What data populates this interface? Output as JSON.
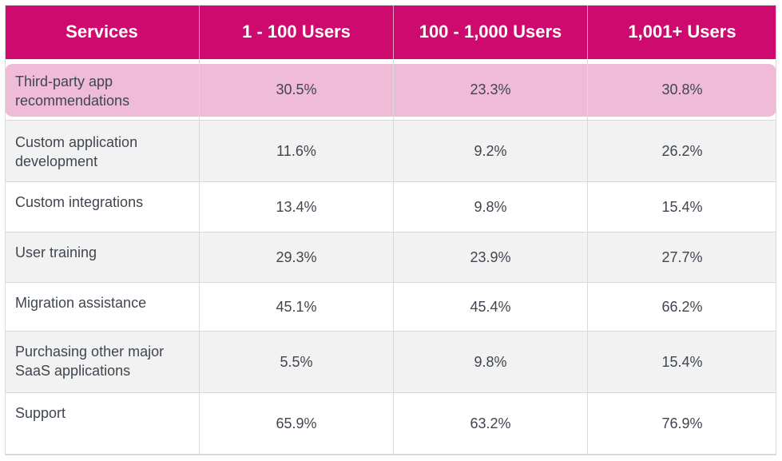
{
  "table": {
    "headers": [
      "Services",
      "1 - 100 Users",
      "100 - 1,000 Users",
      "1,001+ Users"
    ],
    "rows": [
      {
        "service": [
          "Third-party app",
          "recommendations"
        ],
        "values": [
          "30.5%",
          "23.3%",
          "30.8%"
        ],
        "highlighted": true
      },
      {
        "service": [
          "Custom application",
          "development"
        ],
        "values": [
          "11.6%",
          "9.2%",
          "26.2%"
        ]
      },
      {
        "service": [
          "Custom integrations"
        ],
        "values": [
          "13.4%",
          "9.8%",
          "15.4%"
        ]
      },
      {
        "service": [
          "User training"
        ],
        "values": [
          "29.3%",
          "23.9%",
          "27.7%"
        ]
      },
      {
        "service": [
          "Migration assistance"
        ],
        "values": [
          "45.1%",
          "45.4%",
          "66.2%"
        ]
      },
      {
        "service": [
          "Purchasing other major",
          "SaaS applications"
        ],
        "values": [
          "5.5%",
          "9.8%",
          "15.4%"
        ]
      },
      {
        "service": [
          "Support"
        ],
        "values": [
          "65.9%",
          "63.2%",
          "76.9%"
        ]
      }
    ]
  },
  "colors": {
    "header_bg": "#cf0a6f",
    "header_text": "#ffffff",
    "highlight_row": "#efbbd6",
    "alt_row": "#f2f2f2",
    "text": "#3f4650"
  }
}
